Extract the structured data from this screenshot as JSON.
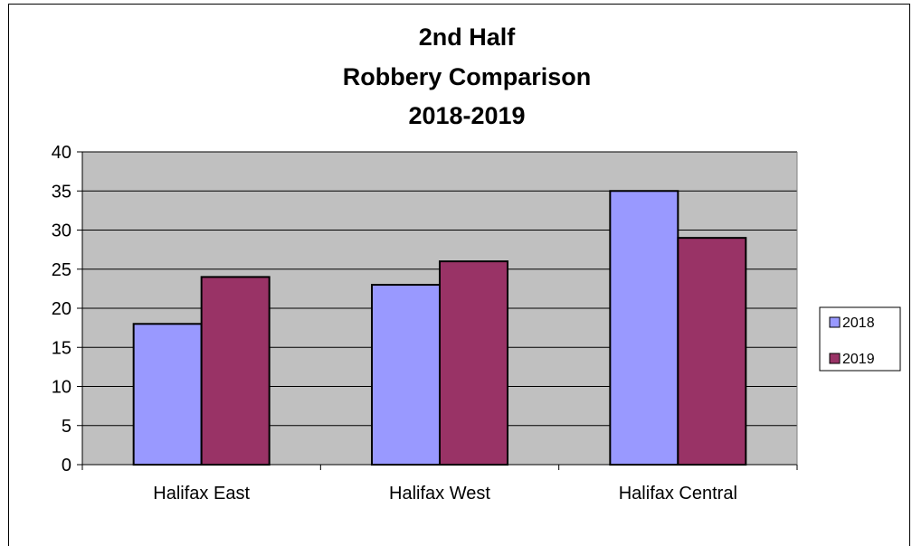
{
  "chart_data": {
    "type": "bar",
    "title_lines": [
      "2nd Half",
      "Robbery Comparison",
      "2018-2019"
    ],
    "categories": [
      "Halifax East",
      "Halifax West",
      "Halifax Central"
    ],
    "series": [
      {
        "name": "2018",
        "values": [
          18,
          23,
          35
        ],
        "color": "#9999ff"
      },
      {
        "name": "2019",
        "values": [
          24,
          26,
          29
        ],
        "color": "#993366"
      }
    ],
    "ylim": [
      0,
      40
    ],
    "yticks": [
      "0",
      "5",
      "10",
      "15",
      "20",
      "25",
      "30",
      "35",
      "40"
    ],
    "grid": true,
    "plot_background": "#c0c0c0",
    "legend_position": "right"
  }
}
